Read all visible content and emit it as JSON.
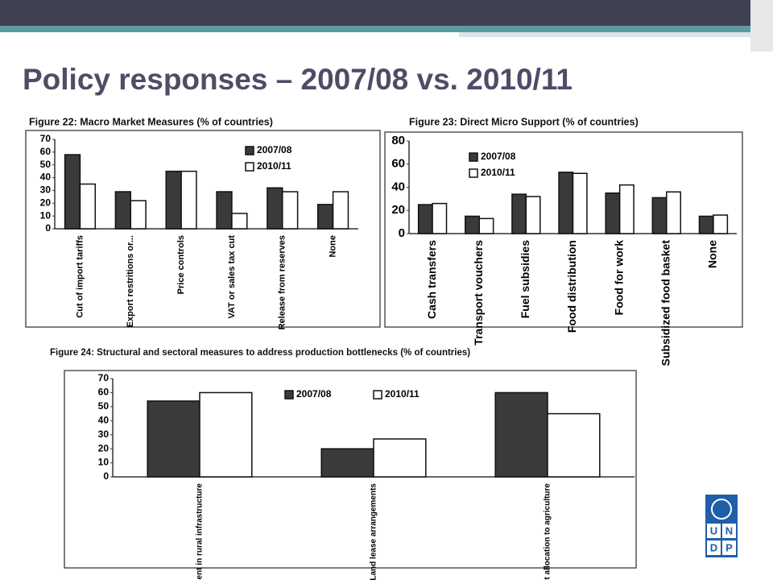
{
  "slide": {
    "title": "Policy responses – 2007/08 vs. 2010/11"
  },
  "logo": [
    "U",
    "N",
    "D",
    "P"
  ],
  "chart_data": [
    {
      "type": "bar",
      "title": "Figure 22: Macro Market Measures (% of countries)",
      "categories": [
        "Cut of import tariffs",
        "Export restritions or...",
        "Price controls",
        "VAT or sales tax cut",
        "Release from reserves",
        "None"
      ],
      "series": [
        {
          "name": "2007/08",
          "color": "#3a3a3a",
          "values": [
            58,
            29,
            45,
            29,
            32,
            19
          ]
        },
        {
          "name": "2010/11",
          "color": "#ffffff",
          "values": [
            35,
            22,
            45,
            12,
            29,
            29
          ]
        }
      ],
      "ylim": [
        0,
        70
      ],
      "yticks": [
        0,
        10,
        20,
        30,
        40,
        50,
        60,
        70
      ],
      "legend": "upper right"
    },
    {
      "type": "bar",
      "title": "Figure 23: Direct Micro Support (% of countries)",
      "categories": [
        "Cash transfers",
        "Transport vouchers",
        "Fuel subsidies",
        "Food distribution",
        "Food for work",
        "Subsidized food basket",
        "None"
      ],
      "series": [
        {
          "name": "2007/08",
          "color": "#3a3a3a",
          "values": [
            25,
            15,
            34,
            53,
            35,
            31,
            15
          ]
        },
        {
          "name": "2010/11",
          "color": "#ffffff",
          "values": [
            26,
            13,
            32,
            52,
            42,
            36,
            16
          ]
        }
      ],
      "ylim": [
        0,
        80
      ],
      "yticks": [
        0,
        20,
        40,
        60,
        80
      ],
      "legend": "upper left"
    },
    {
      "type": "bar",
      "title": "Figure 24: Structural and sectoral measures to address production bottlenecks (% of countries)",
      "categories": [
        "Investment in rural infrastructure",
        "Land lease arrangements",
        "Budget allocation to agriculture"
      ],
      "series": [
        {
          "name": "2007/08",
          "color": "#3a3a3a",
          "values": [
            54,
            20,
            60
          ]
        },
        {
          "name": "2010/11",
          "color": "#ffffff",
          "values": [
            60,
            27,
            45
          ]
        }
      ],
      "ylim": [
        0,
        70
      ],
      "yticks": [
        0,
        10,
        20,
        30,
        40,
        50,
        60,
        70
      ],
      "legend": "upper center"
    }
  ]
}
